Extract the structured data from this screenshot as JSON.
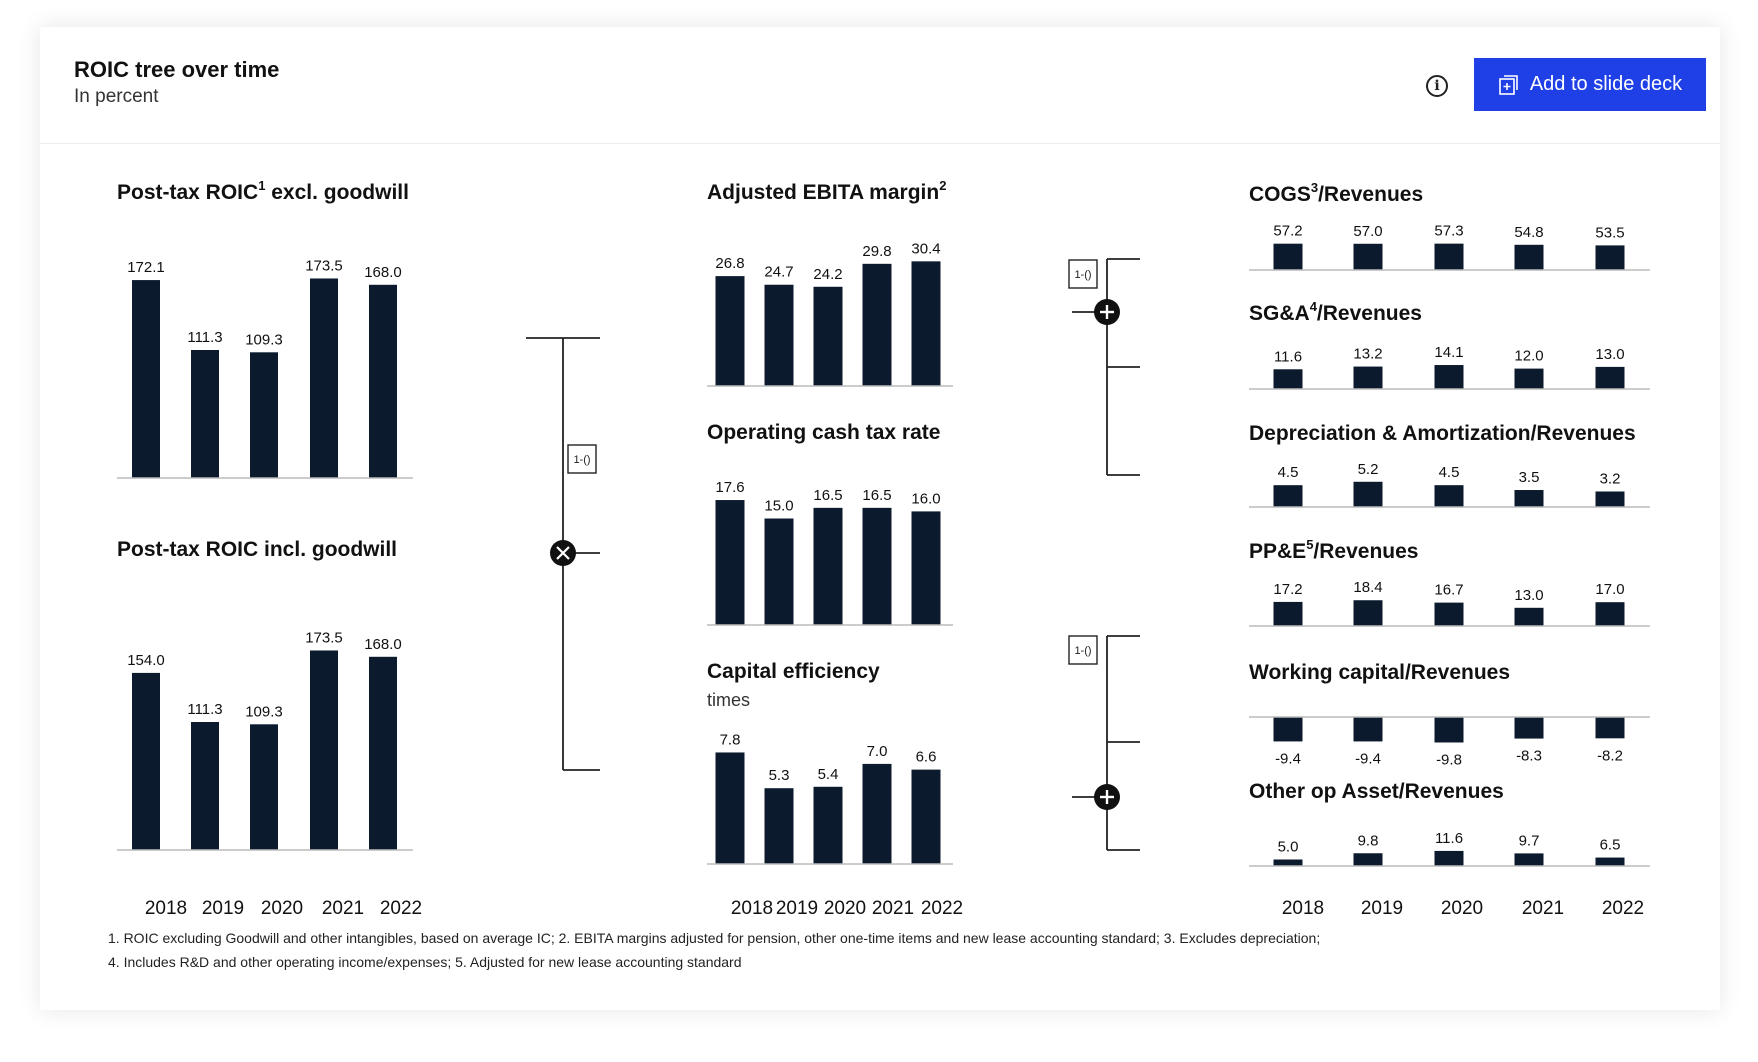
{
  "header": {
    "title": "ROIC tree over time",
    "subtitle": "In percent",
    "info_icon": "info-icon",
    "add_button_label": "Add to slide deck",
    "add_button_icon": "slide-deck-add-icon"
  },
  "operators": {
    "multiply": "multiply-icon",
    "add": "plus-icon",
    "one_minus_label": "1-()"
  },
  "colors": {
    "bar": "#0b1a2c",
    "accent": "#1f40e6"
  },
  "chart_data": [
    {
      "id": "roic_excl",
      "type": "bar",
      "title": "Post-tax ROIC",
      "title_sup": "1",
      "title_rest": " excl. goodwill",
      "categories": [
        "2018",
        "2019",
        "2020",
        "2021",
        "2022"
      ],
      "values": [
        172.1,
        111.3,
        109.3,
        173.5,
        168.0
      ],
      "labels": [
        "172.1",
        "111.3",
        "109.3",
        "173.5",
        "168.0"
      ]
    },
    {
      "id": "roic_incl",
      "type": "bar",
      "title": "Post-tax ROIC incl. goodwill",
      "title_sup": "",
      "title_rest": "",
      "categories": [
        "2018",
        "2019",
        "2020",
        "2021",
        "2022"
      ],
      "values": [
        154.0,
        111.3,
        109.3,
        173.5,
        168.0
      ],
      "labels": [
        "154.0",
        "111.3",
        "109.3",
        "173.5",
        "168.0"
      ]
    },
    {
      "id": "ebita",
      "type": "bar",
      "title": "Adjusted EBITA margin",
      "title_sup": "2",
      "title_rest": "",
      "categories": [
        "2018",
        "2019",
        "2020",
        "2021",
        "2022"
      ],
      "values": [
        26.8,
        24.7,
        24.2,
        29.8,
        30.4
      ],
      "labels": [
        "26.8",
        "24.7",
        "24.2",
        "29.8",
        "30.4"
      ]
    },
    {
      "id": "tax",
      "type": "bar",
      "title": "Operating cash tax rate",
      "title_sup": "",
      "title_rest": "",
      "categories": [
        "2018",
        "2019",
        "2020",
        "2021",
        "2022"
      ],
      "values": [
        17.6,
        15.0,
        16.5,
        16.5,
        16.0
      ],
      "labels": [
        "17.6",
        "15.0",
        "16.5",
        "16.5",
        "16.0"
      ]
    },
    {
      "id": "capeff",
      "type": "bar",
      "title": "Capital efficiency",
      "title_sup": "",
      "title_rest": "",
      "subtitle": "times",
      "categories": [
        "2018",
        "2019",
        "2020",
        "2021",
        "2022"
      ],
      "values": [
        7.8,
        5.3,
        5.4,
        7.0,
        6.6
      ],
      "labels": [
        "7.8",
        "5.3",
        "5.4",
        "7.0",
        "6.6"
      ]
    },
    {
      "id": "cogs",
      "type": "bar",
      "title": "COGS",
      "title_sup": "3",
      "title_rest": "/Revenues",
      "categories": [
        "2018",
        "2019",
        "2020",
        "2021",
        "2022"
      ],
      "values": [
        57.2,
        57.0,
        57.3,
        54.8,
        53.5
      ],
      "labels": [
        "57.2",
        "57.0",
        "57.3",
        "54.8",
        "53.5"
      ]
    },
    {
      "id": "sga",
      "type": "bar",
      "title": "SG&A",
      "title_sup": "4",
      "title_rest": "/Revenues",
      "categories": [
        "2018",
        "2019",
        "2020",
        "2021",
        "2022"
      ],
      "values": [
        11.6,
        13.2,
        14.1,
        12.0,
        13.0
      ],
      "labels": [
        "11.6",
        "13.2",
        "14.1",
        "12.0",
        "13.0"
      ]
    },
    {
      "id": "da",
      "type": "bar",
      "title": "Depreciation & Amortization/Revenues",
      "title_sup": "",
      "title_rest": "",
      "categories": [
        "2018",
        "2019",
        "2020",
        "2021",
        "2022"
      ],
      "values": [
        4.5,
        5.2,
        4.5,
        3.5,
        3.2
      ],
      "labels": [
        "4.5",
        "5.2",
        "4.5",
        "3.5",
        "3.2"
      ]
    },
    {
      "id": "ppe",
      "type": "bar",
      "title": "PP&E",
      "title_sup": "5",
      "title_rest": "/Revenues",
      "categories": [
        "2018",
        "2019",
        "2020",
        "2021",
        "2022"
      ],
      "values": [
        17.2,
        18.4,
        16.7,
        13.0,
        17.0
      ],
      "labels": [
        "17.2",
        "18.4",
        "16.7",
        "13.0",
        "17.0"
      ]
    },
    {
      "id": "wc",
      "type": "bar",
      "title": "Working capital/Revenues",
      "title_sup": "",
      "title_rest": "",
      "categories": [
        "2018",
        "2019",
        "2020",
        "2021",
        "2022"
      ],
      "values": [
        -9.4,
        -9.4,
        -9.8,
        -8.3,
        -8.2
      ],
      "labels": [
        "-9.4",
        "-9.4",
        "-9.8",
        "-8.3",
        "-8.2"
      ]
    },
    {
      "id": "otherop",
      "type": "bar",
      "title": "Other op Asset/Revenues",
      "title_sup": "",
      "title_rest": "",
      "categories": [
        "2018",
        "2019",
        "2020",
        "2021",
        "2022"
      ],
      "values": [
        5.0,
        9.8,
        11.6,
        9.7,
        6.5
      ],
      "labels": [
        "5.0",
        "9.8",
        "11.6",
        "9.7",
        "6.5"
      ]
    }
  ],
  "year_labels": [
    "2018",
    "2019",
    "2020",
    "2021",
    "2022"
  ],
  "footnotes": [
    "1. ROIC excluding Goodwill and other intangibles, based on average IC; 2. EBITA margins adjusted for pension, other one-time items and new lease accounting standard; 3. Excludes depreciation;",
    "4. Includes R&D and other operating income/expenses; 5. Adjusted for new lease accounting standard"
  ]
}
